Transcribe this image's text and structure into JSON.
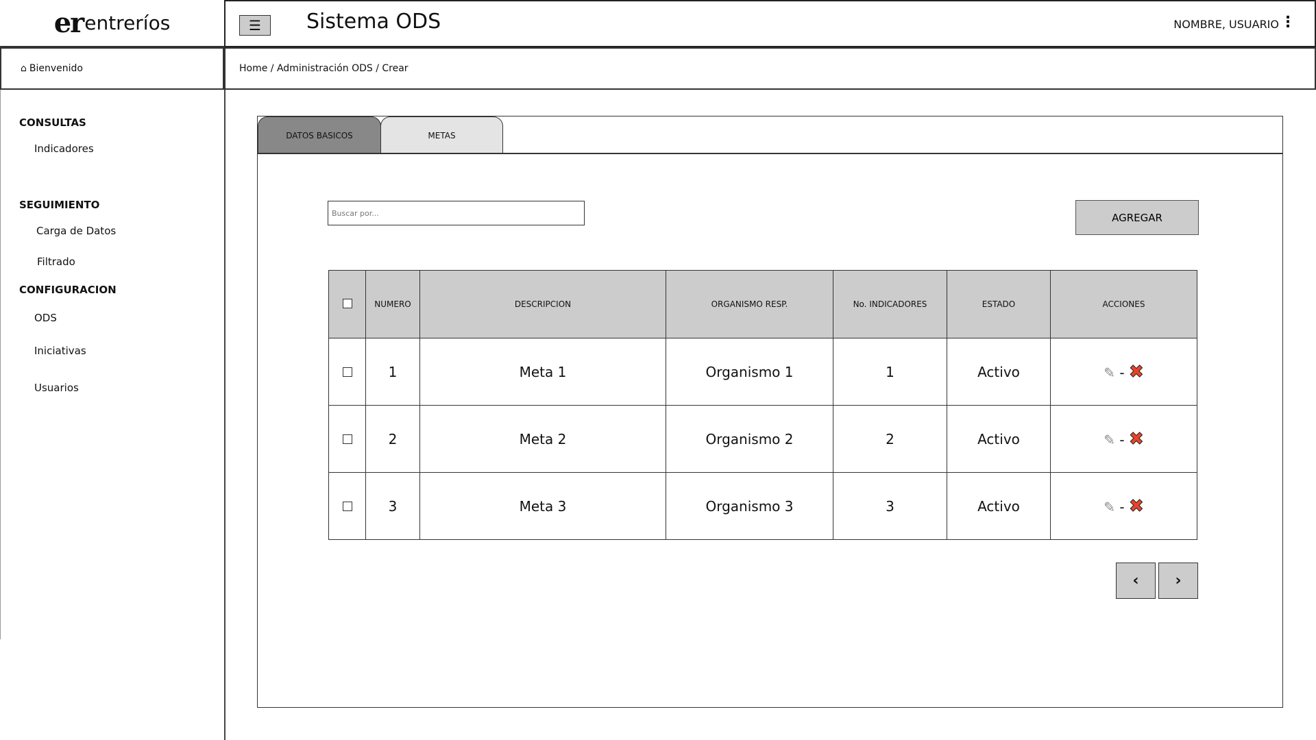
{
  "logo": {
    "mark": "er",
    "text": "entreríos"
  },
  "header": {
    "title": "Sistema ODS",
    "user": "NOMBRE, USUARIO",
    "menu_icon": "hamburger-icon",
    "more_icon": "kebab-icon"
  },
  "welcome": "Bienvenido",
  "breadcrumb": "Home / Administración ODS / Crear",
  "sidebar": {
    "sections": [
      {
        "title": "CONSULTAS",
        "items": [
          "Indicadores"
        ]
      },
      {
        "title": "SEGUIMIENTO",
        "items": [
          "Carga de Datos",
          "Filtrado"
        ]
      },
      {
        "title": "CONFIGURACION",
        "items": [
          "ODS",
          "Iniciativas",
          "Usuarios"
        ]
      }
    ]
  },
  "tabs": [
    {
      "label": "DATOS BASICOS",
      "active": true
    },
    {
      "label": "METAS",
      "active": false
    }
  ],
  "search": {
    "placeholder": "Buscar por..."
  },
  "add_label": "AGREGAR",
  "table": {
    "headers": [
      "NUMERO",
      "DESCRIPCION",
      "ORGANISMO RESP.",
      "No. INDICADORES",
      "ESTADO",
      "ACCIONES"
    ],
    "rows": [
      {
        "numero": "1",
        "descripcion": "Meta 1",
        "organismo": "Organismo 1",
        "indicadores": "1",
        "estado": "Activo"
      },
      {
        "numero": "2",
        "descripcion": "Meta 2",
        "organismo": "Organismo 2",
        "indicadores": "2",
        "estado": "Activo"
      },
      {
        "numero": "3",
        "descripcion": "Meta 3",
        "organismo": "Organismo 3",
        "indicadores": "3",
        "estado": "Activo"
      }
    ],
    "action_separator": "-"
  },
  "pager": {
    "prev": "‹",
    "next": "›"
  },
  "colors": {
    "header_gray": "#cccccc",
    "active_tab": "#888888",
    "delete_red": "#e8442a"
  }
}
